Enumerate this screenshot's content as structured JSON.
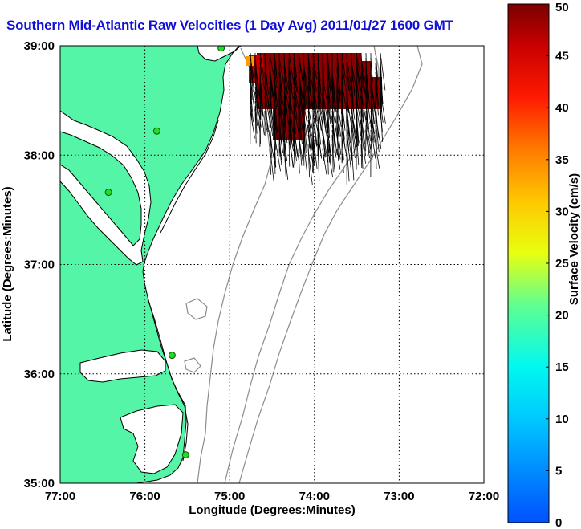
{
  "title": "Southern Mid-Atlantic Raw Velocities (1 Day Avg) 2011/01/27 1600 GMT",
  "map": {
    "xlabel": "Longitude (Degrees:Minutes)",
    "ylabel": "Latitude (Degrees:Minutes)",
    "x_ticks": [
      {
        "value": -77,
        "label": "77:00"
      },
      {
        "value": -76,
        "label": "76:00"
      },
      {
        "value": -75,
        "label": "75:00"
      },
      {
        "value": -74,
        "label": "74:00"
      },
      {
        "value": -73,
        "label": "73:00"
      },
      {
        "value": -72,
        "label": "72:00"
      }
    ],
    "y_ticks": [
      {
        "value": 35,
        "label": "35:00"
      },
      {
        "value": 36,
        "label": "36:00"
      },
      {
        "value": 37,
        "label": "37:00"
      },
      {
        "value": 38,
        "label": "38:00"
      },
      {
        "value": 39,
        "label": "39:00"
      }
    ],
    "xlim": [
      -77,
      -72
    ],
    "ylim": [
      35,
      39
    ],
    "grid": true,
    "land_color": "#55f5a8",
    "stations": [
      {
        "lon": -75.1,
        "lat": 38.98
      },
      {
        "lon": -75.86,
        "lat": 38.22
      },
      {
        "lon": -76.43,
        "lat": 37.66
      },
      {
        "lon": -75.68,
        "lat": 36.17
      },
      {
        "lon": -75.52,
        "lat": 35.26
      }
    ]
  },
  "colorbar": {
    "label": "Surface Velocity (cm/s)",
    "min": 0,
    "max": 50,
    "ticks": [
      "0",
      "5",
      "10",
      "15",
      "20",
      "25",
      "30",
      "35",
      "40",
      "45",
      "50"
    ]
  }
}
